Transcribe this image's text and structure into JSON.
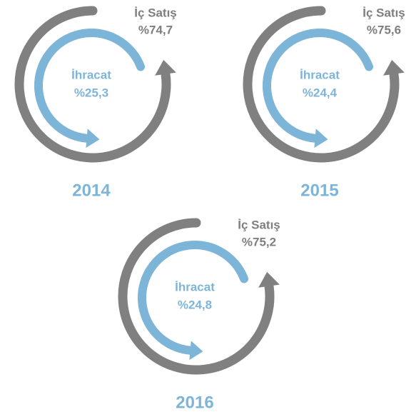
{
  "panels": [
    {
      "year": "2014",
      "domestic": {
        "label": "İç Satış",
        "share": "%74,7"
      },
      "export": {
        "label": "İhracat",
        "share": "%25,3"
      }
    },
    {
      "year": "2015",
      "domestic": {
        "label": "İç Satış",
        "share": "%75,6"
      },
      "export": {
        "label": "İhracat",
        "share": "%24,4"
      }
    },
    {
      "year": "2016",
      "domestic": {
        "label": "İç Satış",
        "share": "%75,2"
      },
      "export": {
        "label": "İhracat",
        "share": "%24,8"
      }
    }
  ]
}
